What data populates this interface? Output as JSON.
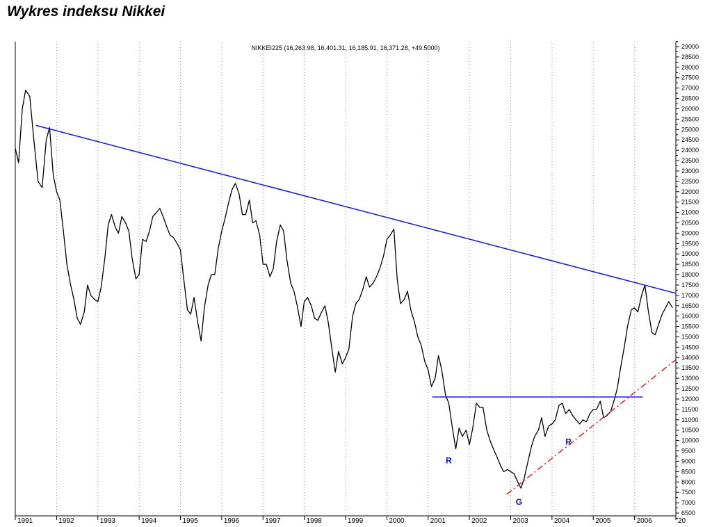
{
  "page": {
    "title": "Wykres indeksu Nikkei"
  },
  "chart_data": {
    "type": "line",
    "title": "NIKKEI225 (16,263.98, 16,401.31, 16,185.91, 16,371.28, +49.5000)",
    "xlabel": "",
    "ylabel": "",
    "xlim": [
      1991.0,
      2007.0
    ],
    "ylim": [
      6000,
      29500
    ],
    "y_ticks": [
      6500,
      7000,
      7500,
      8000,
      8500,
      9000,
      9500,
      10000,
      10500,
      11000,
      11500,
      12000,
      12500,
      13000,
      13500,
      14000,
      14500,
      15000,
      15500,
      16000,
      16500,
      17000,
      17500,
      18000,
      18500,
      19000,
      19500,
      20000,
      20500,
      21000,
      21500,
      22000,
      22500,
      23000,
      23500,
      24000,
      24500,
      25000,
      25500,
      26000,
      26500,
      27000,
      27500,
      28000,
      28500,
      29000
    ],
    "x_tick_labels": [
      "1991",
      "1992",
      "1993",
      "1994",
      "1995",
      "1996",
      "1997",
      "1998",
      "1999",
      "2000",
      "2001",
      "2002",
      "2003",
      "2004",
      "2005",
      "2006",
      "20"
    ],
    "grid": true,
    "series": [
      {
        "name": "NIKKEI225",
        "color": "#000000",
        "points": [
          [
            1991.0,
            24100
          ],
          [
            1991.08,
            23400
          ],
          [
            1991.17,
            26000
          ],
          [
            1991.25,
            26900
          ],
          [
            1991.35,
            26600
          ],
          [
            1991.45,
            24500
          ],
          [
            1991.55,
            22500
          ],
          [
            1991.65,
            22200
          ],
          [
            1991.75,
            24500
          ],
          [
            1991.83,
            25100
          ],
          [
            1991.92,
            22800
          ],
          [
            1992.0,
            22000
          ],
          [
            1992.08,
            21600
          ],
          [
            1992.17,
            20000
          ],
          [
            1992.25,
            18500
          ],
          [
            1992.33,
            17600
          ],
          [
            1992.42,
            16800
          ],
          [
            1992.5,
            15900
          ],
          [
            1992.58,
            15600
          ],
          [
            1992.67,
            16200
          ],
          [
            1992.75,
            17500
          ],
          [
            1992.83,
            17000
          ],
          [
            1992.92,
            16800
          ],
          [
            1993.0,
            16700
          ],
          [
            1993.08,
            17400
          ],
          [
            1993.17,
            18800
          ],
          [
            1993.25,
            20400
          ],
          [
            1993.33,
            20900
          ],
          [
            1993.42,
            20300
          ],
          [
            1993.5,
            20000
          ],
          [
            1993.58,
            20800
          ],
          [
            1993.67,
            20500
          ],
          [
            1993.75,
            20100
          ],
          [
            1993.83,
            18800
          ],
          [
            1993.92,
            17800
          ],
          [
            1994.0,
            18000
          ],
          [
            1994.08,
            19700
          ],
          [
            1994.17,
            19600
          ],
          [
            1994.25,
            20100
          ],
          [
            1994.33,
            20800
          ],
          [
            1994.42,
            21000
          ],
          [
            1994.5,
            21200
          ],
          [
            1994.58,
            20800
          ],
          [
            1994.67,
            20300
          ],
          [
            1994.75,
            19900
          ],
          [
            1994.83,
            19800
          ],
          [
            1994.92,
            19500
          ],
          [
            1995.0,
            19200
          ],
          [
            1995.08,
            17800
          ],
          [
            1995.17,
            16300
          ],
          [
            1995.25,
            16100
          ],
          [
            1995.33,
            16900
          ],
          [
            1995.42,
            15700
          ],
          [
            1995.5,
            14800
          ],
          [
            1995.58,
            16400
          ],
          [
            1995.67,
            17500
          ],
          [
            1995.75,
            18000
          ],
          [
            1995.83,
            18000
          ],
          [
            1995.92,
            19300
          ],
          [
            1996.0,
            20100
          ],
          [
            1996.08,
            20700
          ],
          [
            1996.17,
            21500
          ],
          [
            1996.25,
            22100
          ],
          [
            1996.33,
            22400
          ],
          [
            1996.42,
            21900
          ],
          [
            1996.5,
            20900
          ],
          [
            1996.58,
            20900
          ],
          [
            1996.67,
            21600
          ],
          [
            1996.75,
            20500
          ],
          [
            1996.83,
            20600
          ],
          [
            1996.92,
            19900
          ],
          [
            1997.0,
            18500
          ],
          [
            1997.08,
            18500
          ],
          [
            1997.17,
            17900
          ],
          [
            1997.25,
            18300
          ],
          [
            1997.33,
            19600
          ],
          [
            1997.42,
            20400
          ],
          [
            1997.5,
            20100
          ],
          [
            1997.58,
            18700
          ],
          [
            1997.67,
            17600
          ],
          [
            1997.75,
            17200
          ],
          [
            1997.83,
            16500
          ],
          [
            1997.92,
            15500
          ],
          [
            1998.0,
            16700
          ],
          [
            1998.08,
            16900
          ],
          [
            1998.17,
            16500
          ],
          [
            1998.25,
            15900
          ],
          [
            1998.33,
            15800
          ],
          [
            1998.42,
            16200
          ],
          [
            1998.5,
            16500
          ],
          [
            1998.58,
            15700
          ],
          [
            1998.67,
            14400
          ],
          [
            1998.75,
            13300
          ],
          [
            1998.83,
            14300
          ],
          [
            1998.92,
            13700
          ],
          [
            1999.0,
            14000
          ],
          [
            1999.08,
            14400
          ],
          [
            1999.17,
            16000
          ],
          [
            1999.25,
            16600
          ],
          [
            1999.33,
            16800
          ],
          [
            1999.42,
            17300
          ],
          [
            1999.5,
            17900
          ],
          [
            1999.58,
            17400
          ],
          [
            1999.67,
            17600
          ],
          [
            1999.75,
            17900
          ],
          [
            1999.83,
            18300
          ],
          [
            1999.92,
            18900
          ],
          [
            2000.0,
            19700
          ],
          [
            2000.08,
            19900
          ],
          [
            2000.17,
            20200
          ],
          [
            2000.25,
            17800
          ],
          [
            2000.33,
            16600
          ],
          [
            2000.42,
            16800
          ],
          [
            2000.5,
            17200
          ],
          [
            2000.58,
            16300
          ],
          [
            2000.67,
            15700
          ],
          [
            2000.75,
            15000
          ],
          [
            2000.83,
            14600
          ],
          [
            2000.92,
            13800
          ],
          [
            2001.0,
            13400
          ],
          [
            2001.08,
            12600
          ],
          [
            2001.17,
            13000
          ],
          [
            2001.25,
            14100
          ],
          [
            2001.33,
            13400
          ],
          [
            2001.42,
            12200
          ],
          [
            2001.5,
            11800
          ],
          [
            2001.58,
            10700
          ],
          [
            2001.67,
            9600
          ],
          [
            2001.75,
            10600
          ],
          [
            2001.83,
            10200
          ],
          [
            2001.92,
            10500
          ],
          [
            2002.0,
            9800
          ],
          [
            2002.08,
            10600
          ],
          [
            2002.17,
            11800
          ],
          [
            2002.25,
            11600
          ],
          [
            2002.33,
            11600
          ],
          [
            2002.42,
            10500
          ],
          [
            2002.5,
            10000
          ],
          [
            2002.58,
            9600
          ],
          [
            2002.67,
            9200
          ],
          [
            2002.75,
            8800
          ],
          [
            2002.83,
            8500
          ],
          [
            2002.92,
            8600
          ],
          [
            2003.0,
            8500
          ],
          [
            2003.08,
            8400
          ],
          [
            2003.17,
            8000
          ],
          [
            2003.25,
            7700
          ],
          [
            2003.33,
            8200
          ],
          [
            2003.42,
            9000
          ],
          [
            2003.5,
            9700
          ],
          [
            2003.58,
            10200
          ],
          [
            2003.67,
            10500
          ],
          [
            2003.75,
            11100
          ],
          [
            2003.83,
            10200
          ],
          [
            2003.92,
            10700
          ],
          [
            2004.0,
            10800
          ],
          [
            2004.08,
            11000
          ],
          [
            2004.17,
            11700
          ],
          [
            2004.25,
            11800
          ],
          [
            2004.33,
            11300
          ],
          [
            2004.42,
            11500
          ],
          [
            2004.5,
            11200
          ],
          [
            2004.58,
            11000
          ],
          [
            2004.67,
            10800
          ],
          [
            2004.75,
            11000
          ],
          [
            2004.83,
            10900
          ],
          [
            2004.92,
            11300
          ],
          [
            2005.0,
            11500
          ],
          [
            2005.08,
            11500
          ],
          [
            2005.17,
            11900
          ],
          [
            2005.25,
            11100
          ],
          [
            2005.33,
            11200
          ],
          [
            2005.42,
            11400
          ],
          [
            2005.5,
            11900
          ],
          [
            2005.58,
            12500
          ],
          [
            2005.67,
            13600
          ],
          [
            2005.75,
            14500
          ],
          [
            2005.83,
            15500
          ],
          [
            2005.92,
            16300
          ],
          [
            2006.0,
            16400
          ],
          [
            2006.08,
            16200
          ],
          [
            2006.17,
            17000
          ],
          [
            2006.25,
            17500
          ],
          [
            2006.33,
            16300
          ],
          [
            2006.42,
            15200
          ],
          [
            2006.5,
            15100
          ],
          [
            2006.58,
            15600
          ],
          [
            2006.67,
            16100
          ],
          [
            2006.75,
            16400
          ],
          [
            2006.83,
            16700
          ],
          [
            2006.92,
            16400
          ]
        ]
      }
    ],
    "lines": [
      {
        "name": "long-term-resistance-trendline",
        "color": "#2020dd",
        "dash": false,
        "from": [
          1991.5,
          25200
        ],
        "to": [
          2007.0,
          17100
        ]
      },
      {
        "name": "neckline",
        "color": "#2020dd",
        "dash": false,
        "from": [
          2001.1,
          12100
        ],
        "to": [
          2006.2,
          12100
        ]
      },
      {
        "name": "support-trendline",
        "color": "#e03030",
        "dash": true,
        "from": [
          2002.9,
          7400
        ],
        "to": [
          2007.0,
          13900
        ]
      }
    ],
    "annotations": [
      {
        "name": "left-shoulder-label",
        "text": "R",
        "x": 2001.5,
        "y": 8900
      },
      {
        "name": "head-label",
        "text": "G",
        "x": 2003.2,
        "y": 6900
      },
      {
        "name": "right-shoulder-label",
        "text": "R",
        "x": 2004.4,
        "y": 9800
      }
    ]
  }
}
